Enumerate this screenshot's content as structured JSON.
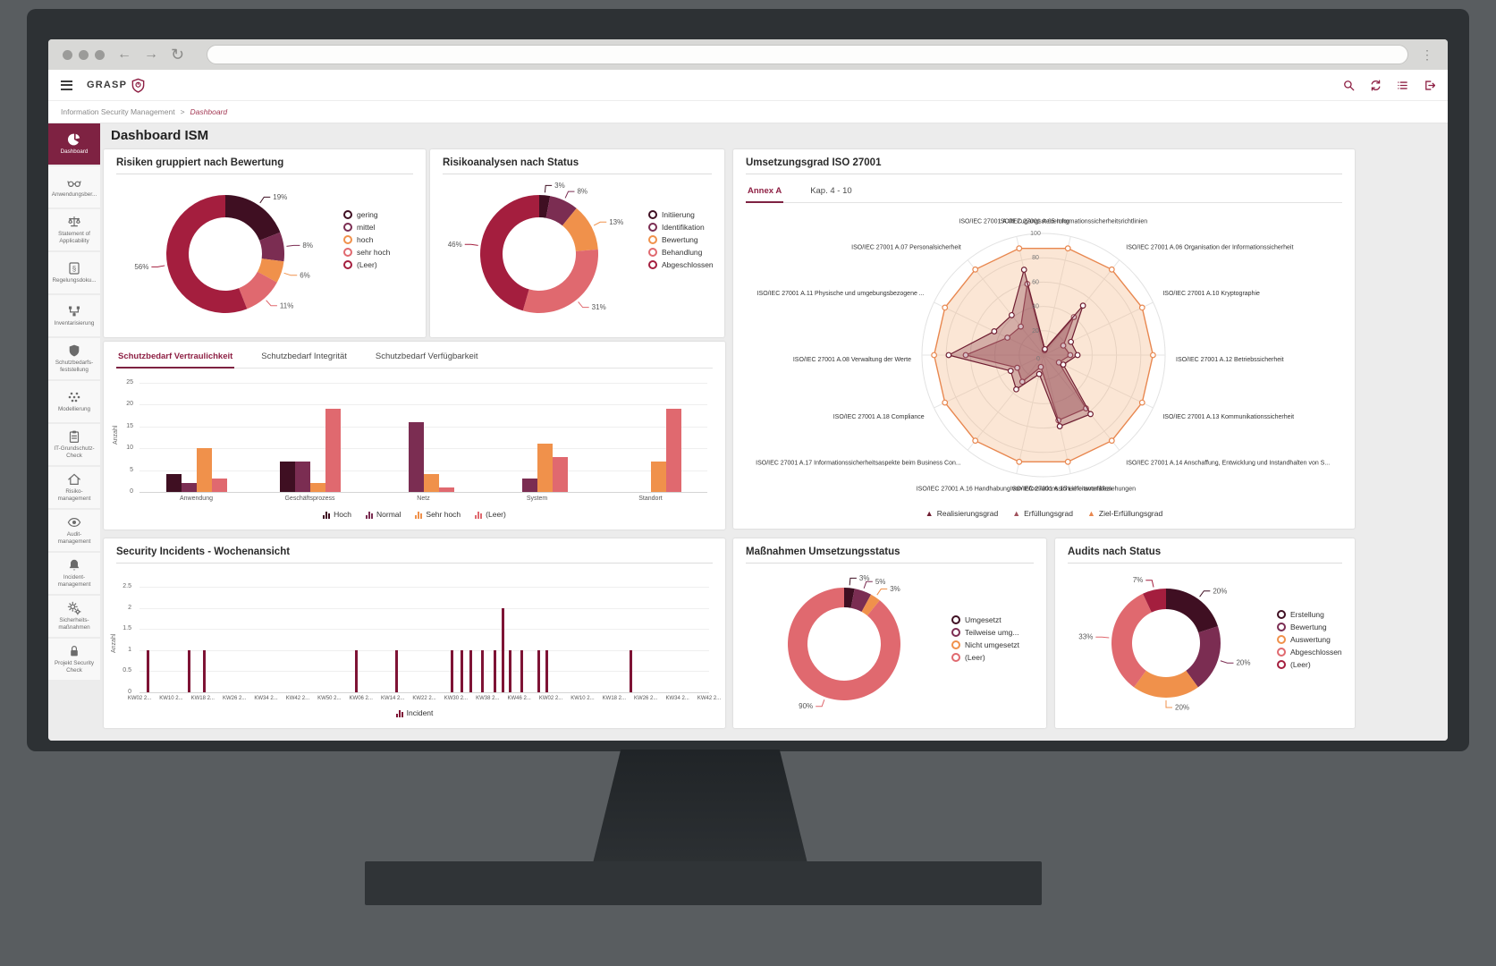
{
  "window": {
    "url_value": ""
  },
  "app_header": {
    "brand": "GRASP",
    "action_icons": [
      "search",
      "sync",
      "list",
      "logout"
    ]
  },
  "breadcrumb": {
    "items": [
      "Information Security Management",
      "Dashboard"
    ],
    "separator": ">"
  },
  "page_title": "Dashboard ISM",
  "sidebar": {
    "items": [
      {
        "label": "Dashboard",
        "icon": "pie-chart",
        "active": true
      },
      {
        "label": "Anwendungsber...",
        "icon": "glasses",
        "active": false
      },
      {
        "label": "Statement of\nApplicability",
        "icon": "scales",
        "active": false
      },
      {
        "label": "Regelungsdoku...",
        "icon": "paragraph-book",
        "active": false
      },
      {
        "label": "Inventarisierung",
        "icon": "network-nodes",
        "active": false
      },
      {
        "label": "Schutzbedarfs-\nfeststellung",
        "icon": "shield",
        "active": false
      },
      {
        "label": "Modellierung",
        "icon": "dots-grid",
        "active": false
      },
      {
        "label": "IT-Grundschutz-\nCheck",
        "icon": "clipboard",
        "active": false
      },
      {
        "label": "Risiko-\nmanagement",
        "icon": "house",
        "active": false
      },
      {
        "label": "Audit-\nmanagement",
        "icon": "eye",
        "active": false
      },
      {
        "label": "Incident-\nmanagement",
        "icon": "bell",
        "active": false
      },
      {
        "label": "Sicherheits-\nmaßnahmen",
        "icon": "gears",
        "active": false
      },
      {
        "label": "Projekt Security\nCheck",
        "icon": "lock",
        "active": false
      }
    ]
  },
  "palette": {
    "darkest": "#3f0f22",
    "plum": "#7b2d52",
    "orange": "#f0914b",
    "salmon": "#e0696f",
    "crimson": "#a41e3e",
    "accent": "#8e2044"
  },
  "chart_data": [
    {
      "key": "risiken",
      "type": "donut",
      "title": "Risiken gruppiert nach Bewertung",
      "slices": [
        {
          "label": "gering",
          "value": 19,
          "color": "#3f0f22"
        },
        {
          "label": "mittel",
          "value": 8,
          "color": "#7b2d52"
        },
        {
          "label": "hoch",
          "value": 6,
          "color": "#f0914b"
        },
        {
          "label": "sehr hoch",
          "value": 11,
          "color": "#e0696f"
        },
        {
          "label": "(Leer)",
          "value": 56,
          "color": "#a41e3e"
        }
      ]
    },
    {
      "key": "risikoanalysen",
      "type": "donut",
      "title": "Risikoanalysen nach Status",
      "slices": [
        {
          "label": "Initiierung",
          "value": 3,
          "color": "#3f0f22"
        },
        {
          "label": "Identifikation",
          "value": 8,
          "color": "#7b2d52"
        },
        {
          "label": "Bewertung",
          "value": 13,
          "color": "#f0914b"
        },
        {
          "label": "Behandlung",
          "value": 31,
          "color": "#e0696f"
        },
        {
          "label": "Abgeschlossen",
          "value": 46,
          "color": "#a41e3e"
        }
      ]
    },
    {
      "key": "iso27001",
      "type": "radar",
      "title": "Umsetzungsgrad ISO 27001",
      "tabs": [
        "Annex A",
        "Kap. 4 - 10"
      ],
      "active_tab": 0,
      "rmax": 100,
      "ticks": [
        20,
        40,
        60,
        80,
        100
      ],
      "center_label": "0",
      "axes": [
        "ISO/IEC 27001 A.05 Informationssicherheitsrichtlinien",
        "ISO/IEC 27001 A.06 Organisation der Informationssicherheit",
        "ISO/IEC 27001 A.10 Kryptographie",
        "ISO/IEC 27001 A.12 Betriebssicherheit",
        "ISO/IEC 27001 A.13 Kommunikationssicherheit",
        "ISO/IEC 27001 A.14 Anschaffung, Entwicklung und Instandhalten von S...",
        "ISO/IEC 27001 A.15 Lieferantenbeziehungen",
        "ISO/IEC 27001 A.16 Handhabung von Informationssicherheitsvorfällen",
        "ISO/IEC 27001 A.17 Informationssicherheitsaspekte beim Business Con...",
        "ISO/IEC 27001 A.18 Compliance",
        "ISO/IEC 27001 A.08 Verwaltung der Werte",
        "ISO/IEC 27001 A.11 Physische und umgebungsbezogene ...",
        "ISO/IEC 27001 A.07 Personalsicherheit",
        "ISO/IEC 27001 A.09 Zugangssteuerung"
      ],
      "series": [
        {
          "name": "Realisierungsgrad",
          "color": "#6f1d31",
          "fill": "rgba(111,29,49,0.28)",
          "values": [
            5,
            52,
            25,
            28,
            18,
            62,
            60,
            16,
            36,
            30,
            78,
            45,
            42,
            72
          ]
        },
        {
          "name": "Erfüllungsgrad",
          "color": "#a0525c",
          "fill": "rgba(160,82,92,0.35)",
          "values": [
            4,
            40,
            18,
            22,
            14,
            56,
            55,
            10,
            28,
            24,
            64,
            33,
            30,
            60
          ]
        },
        {
          "name": "Ziel-Erfüllungsgrad",
          "color": "#e8874f",
          "fill": "rgba(243,178,129,0.33)",
          "values": [
            90,
            90,
            90,
            90,
            90,
            90,
            90,
            90,
            90,
            90,
            90,
            90,
            90,
            90
          ]
        }
      ]
    },
    {
      "key": "schutzbedarf",
      "type": "bar",
      "tabs": [
        "Schutzbedarf Vertraulichkeit",
        "Schutzbedarf Integrität",
        "Schutzbedarf Verfügbarkeit"
      ],
      "active_tab": 0,
      "ylabel": "Anzahl",
      "ylim": [
        0,
        25
      ],
      "yticks": [
        0,
        5,
        10,
        15,
        20,
        25
      ],
      "categories": [
        "Anwendung",
        "Geschäftsprozess",
        "Netz",
        "System",
        "Standort"
      ],
      "series": [
        {
          "name": "Hoch",
          "color": "#3f0f22",
          "values": [
            4,
            7,
            0,
            0,
            0
          ]
        },
        {
          "name": "Normal",
          "color": "#7b2d52",
          "values": [
            2,
            7,
            16,
            3,
            0
          ]
        },
        {
          "name": "Sehr hoch",
          "color": "#f0914b",
          "values": [
            10,
            2,
            4,
            11,
            7
          ]
        },
        {
          "name": "(Leer)",
          "color": "#e0696f",
          "values": [
            3,
            19,
            1,
            8,
            19
          ]
        }
      ]
    },
    {
      "key": "incidents",
      "type": "bar",
      "title": "Security Incidents - Wochenansicht",
      "ylabel": "Anzahl",
      "ylim": [
        0,
        2.5
      ],
      "yticks": [
        0,
        0.5,
        1,
        1.5,
        2,
        2.5
      ],
      "series_name": "Incident",
      "color": "#7e1335",
      "xticks": [
        "KW02 2...",
        "KW10 2...",
        "KW18 2...",
        "KW26 2...",
        "KW34 2...",
        "KW42 2...",
        "KW50 2...",
        "KW06 2...",
        "KW14 2...",
        "KW22 2...",
        "KW30 2...",
        "KW38 2...",
        "KW46 2...",
        "KW02 2...",
        "KW10 2...",
        "KW18 2...",
        "KW26 2...",
        "KW34 2...",
        "KW42 2..."
      ],
      "bars": [
        {
          "pos": 0.012,
          "value": 1
        },
        {
          "pos": 0.085,
          "value": 1
        },
        {
          "pos": 0.112,
          "value": 1
        },
        {
          "pos": 0.378,
          "value": 1
        },
        {
          "pos": 0.449,
          "value": 1
        },
        {
          "pos": 0.547,
          "value": 1
        },
        {
          "pos": 0.563,
          "value": 1
        },
        {
          "pos": 0.58,
          "value": 1
        },
        {
          "pos": 0.6,
          "value": 1
        },
        {
          "pos": 0.621,
          "value": 1
        },
        {
          "pos": 0.636,
          "value": 2
        },
        {
          "pos": 0.649,
          "value": 1
        },
        {
          "pos": 0.668,
          "value": 1
        },
        {
          "pos": 0.698,
          "value": 1
        },
        {
          "pos": 0.713,
          "value": 1
        },
        {
          "pos": 0.86,
          "value": 1
        }
      ]
    },
    {
      "key": "massnahmen",
      "type": "donut",
      "title": "Maßnahmen Umsetzungsstatus",
      "slices": [
        {
          "label": "Umgesetzt",
          "value": 3,
          "color": "#3f0f22"
        },
        {
          "label": "Teilweise umg...",
          "value": 5,
          "color": "#7b2d52"
        },
        {
          "label": "Nicht umgesetzt",
          "value": 3,
          "color": "#f0914b"
        },
        {
          "label": "(Leer)",
          "value": 90,
          "color": "#e0696f"
        }
      ]
    },
    {
      "key": "audits",
      "type": "donut",
      "title": "Audits nach Status",
      "slices": [
        {
          "label": "Erstellung",
          "value": 20,
          "color": "#3f0f22"
        },
        {
          "label": "Bewertung",
          "value": 20,
          "color": "#7b2d52"
        },
        {
          "label": "Auswertung",
          "value": 20,
          "color": "#f0914b"
        },
        {
          "label": "Abgeschlossen",
          "value": 33,
          "color": "#e0696f"
        },
        {
          "label": "(Leer)",
          "value": 7,
          "color": "#a41e3e"
        }
      ]
    }
  ]
}
